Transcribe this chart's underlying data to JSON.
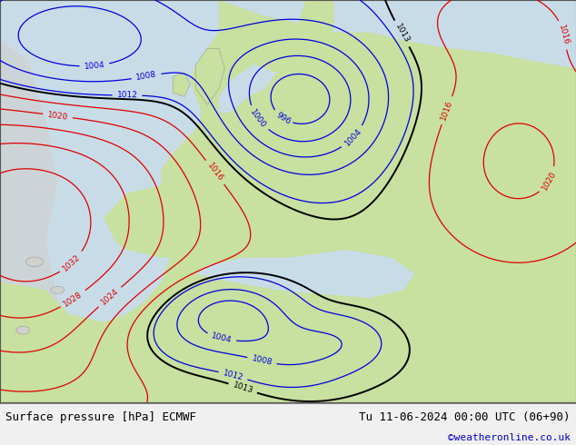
{
  "fig_width": 6.34,
  "fig_height": 4.9,
  "dpi": 100,
  "bg_ocean": "#c8dce8",
  "bg_land_west": "#d8d8d4",
  "bg_land_europe": "#c8e0a0",
  "footer_left": "Surface pressure [hPa] ECMWF",
  "footer_right": "Tu 11-06-2024 00:00 UTC (06+90)",
  "footer_credit": "©weatheronline.co.uk",
  "footer_color": "#000000",
  "footer_credit_color": "#0000cc",
  "contour_blue": "#0000dd",
  "contour_red": "#dd0000",
  "contour_black": "#000000",
  "label_fontsize": 6.5,
  "footer_fontsize": 9,
  "credit_fontsize": 8
}
